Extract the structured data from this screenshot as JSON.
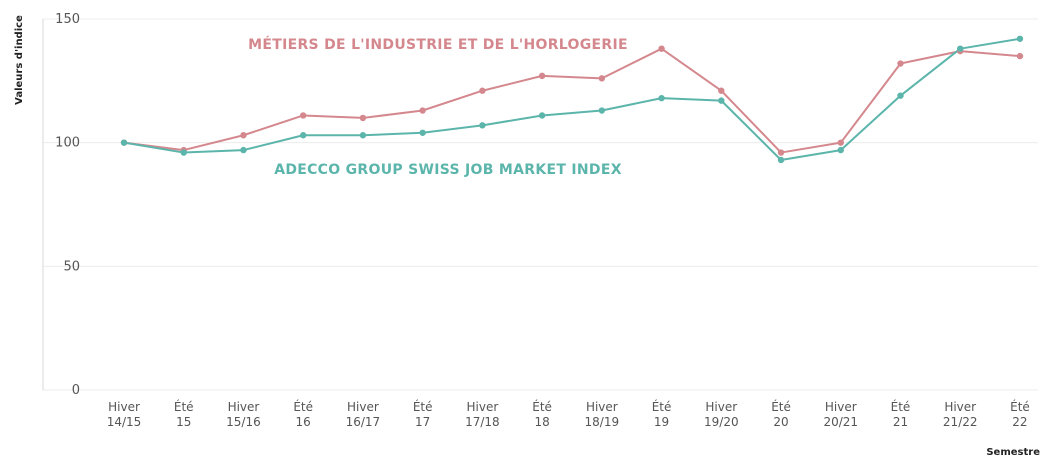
{
  "colors": {
    "series_1": "#d4888e",
    "series_2": "#5bb5ab",
    "grid": "#ececec",
    "axis": "#d9d9d9"
  },
  "chart_data": {
    "type": "line",
    "xlabel": "Semestre",
    "ylabel": "Valeurs d'indice",
    "ylim": [
      0,
      150
    ],
    "yticks": [
      0,
      50,
      100,
      150
    ],
    "grid": true,
    "categories": [
      [
        "Hiver",
        "14/15"
      ],
      [
        "Été",
        "15"
      ],
      [
        "Hiver",
        "15/16"
      ],
      [
        "Été",
        "16"
      ],
      [
        "Hiver",
        "16/17"
      ],
      [
        "Été",
        "17"
      ],
      [
        "Hiver",
        "17/18"
      ],
      [
        "Été",
        "18"
      ],
      [
        "Hiver",
        "18/19"
      ],
      [
        "Été",
        "19"
      ],
      [
        "Hiver",
        "19/20"
      ],
      [
        "Été",
        "20"
      ],
      [
        "Hiver",
        "20/21"
      ],
      [
        "Été",
        "21"
      ],
      [
        "Hiver",
        "21/22"
      ],
      [
        "Été",
        "22"
      ]
    ],
    "series": [
      {
        "name": "MÉTIERS DE L'INDUSTRIE ET DE L'HORLOGERIE",
        "color": "#d4888e",
        "values": [
          100,
          97,
          103,
          111,
          110,
          113,
          121,
          127,
          126,
          138,
          121,
          96,
          100,
          132,
          137,
          135
        ]
      },
      {
        "name": "ADECCO GROUP SWISS JOB MARKET INDEX",
        "color": "#5bb5ab",
        "values": [
          100,
          96,
          97,
          103,
          103,
          104,
          107,
          111,
          113,
          118,
          117,
          93,
          97,
          119,
          138,
          142
        ]
      }
    ]
  }
}
